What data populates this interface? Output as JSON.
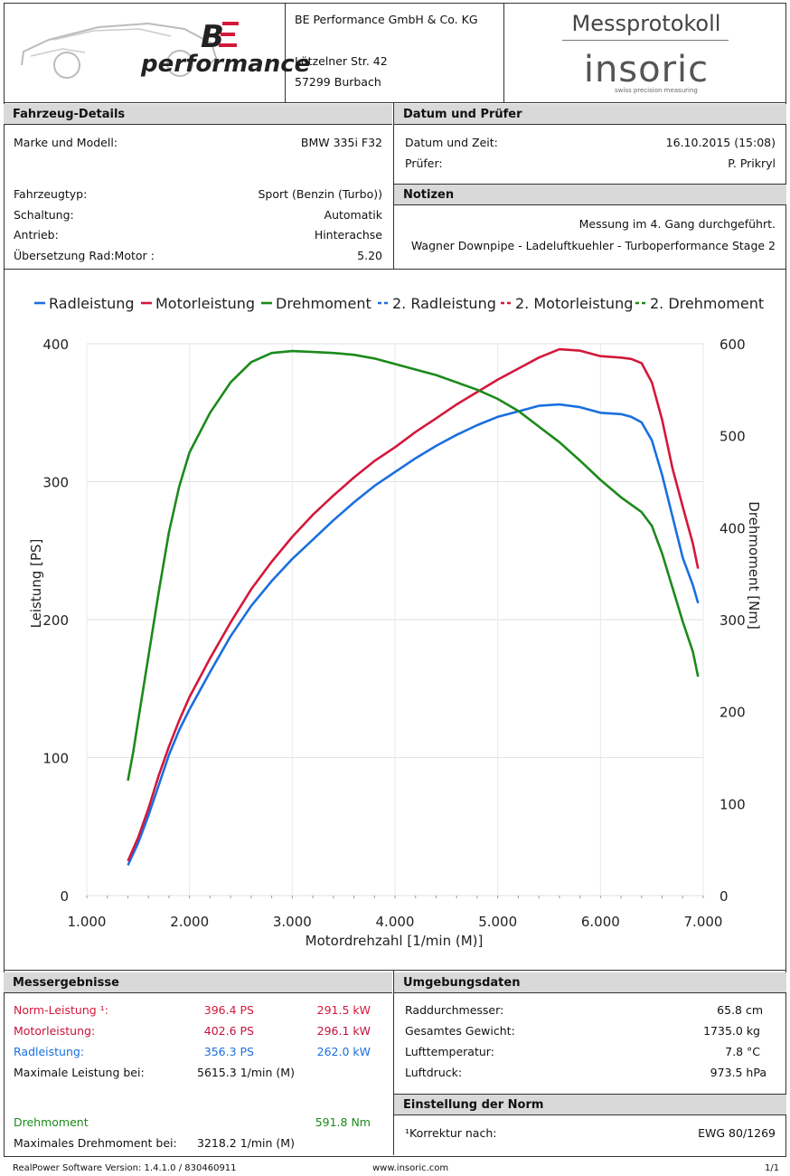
{
  "header": {
    "brand": "performance",
    "company_name": "BE Performance GmbH & Co. KG",
    "street": "Lützelner Str. 42",
    "city": "57299 Burbach",
    "protocol_title": "Messprotokoll",
    "insoric_logo": "insoric",
    "insoric_tagline": "swiss precision measuring"
  },
  "vehicle": {
    "section_title": "Fahrzeug-Details",
    "rows": [
      {
        "label": "Marke und Modell:",
        "value": "BMW 335i F32"
      },
      {
        "label": "Fahrzeugtyp:",
        "value": "Sport (Benzin (Turbo))"
      },
      {
        "label": "Schaltung:",
        "value": "Automatik"
      },
      {
        "label": "Antrieb:",
        "value": "Hinterachse"
      },
      {
        "label": "Übersetzung Rad:Motor :",
        "value": "5.20"
      }
    ]
  },
  "date_tester": {
    "section_title": "Datum und Prüfer",
    "rows": [
      {
        "label": "Datum und Zeit:",
        "value": "16.10.2015 (15:08)"
      },
      {
        "label": "Prüfer:",
        "value": "P. Prikryl"
      }
    ]
  },
  "notes": {
    "section_title": "Notizen",
    "lines": [
      "Messung im 4. Gang durchgeführt.",
      "Wagner Downpipe - Ladeluftkuehler - Turboperformance Stage 2"
    ]
  },
  "chart_data": {
    "type": "line",
    "xlabel": "Motordrehzahl [1/min (M)]",
    "ylabel": "Leistung [PS]",
    "y2label": "Drehmoment [Nm]",
    "xlim": [
      1000,
      7000
    ],
    "ylim": [
      0,
      400
    ],
    "y2lim": [
      0,
      600
    ],
    "x_ticks": [
      "1.000",
      "2.000",
      "3.000",
      "4.000",
      "5.000",
      "6.000",
      "7.000"
    ],
    "y_ticks": [
      "0",
      "100",
      "200",
      "300",
      "400"
    ],
    "y2_ticks": [
      "0",
      "100",
      "200",
      "300",
      "400",
      "500",
      "600"
    ],
    "grid": true,
    "legend_position": "top",
    "legend": [
      {
        "name": "Radleistung",
        "color": "#1a6fe0",
        "style": "solid"
      },
      {
        "name": "Motorleistung",
        "color": "#d4183a",
        "style": "solid"
      },
      {
        "name": "Drehmoment",
        "color": "#1b8a1b",
        "style": "solid"
      },
      {
        "name": "2. Radleistung",
        "color": "#1a6fe0",
        "style": "dashed"
      },
      {
        "name": "2. Motorleistung",
        "color": "#d4183a",
        "style": "dashed"
      },
      {
        "name": "2. Drehmoment",
        "color": "#1b8a1b",
        "style": "dashed"
      }
    ],
    "series": [
      {
        "name": "Radleistung",
        "axis": "left",
        "color": "#1a6fe0",
        "x": [
          1400,
          1500,
          1600,
          1700,
          1800,
          1900,
          2000,
          2200,
          2400,
          2600,
          2800,
          3000,
          3200,
          3400,
          3600,
          3800,
          4000,
          4200,
          4400,
          4600,
          4800,
          5000,
          5200,
          5400,
          5600,
          5800,
          6000,
          6200,
          6300,
          6400,
          6500,
          6600,
          6700,
          6800,
          6900,
          6950
        ],
        "y": [
          22,
          38,
          58,
          80,
          102,
          120,
          135,
          162,
          188,
          210,
          228,
          244,
          258,
          272,
          285,
          297,
          307,
          317,
          326,
          334,
          341,
          347,
          351,
          355,
          356,
          354,
          350,
          349,
          347,
          343,
          330,
          305,
          275,
          245,
          225,
          212
        ]
      },
      {
        "name": "Motorleistung",
        "axis": "left",
        "color": "#d4183a",
        "x": [
          1400,
          1500,
          1600,
          1700,
          1800,
          1900,
          2000,
          2200,
          2400,
          2600,
          2800,
          3000,
          3200,
          3400,
          3600,
          3800,
          4000,
          4200,
          4400,
          4600,
          4800,
          5000,
          5200,
          5400,
          5600,
          5800,
          6000,
          6200,
          6300,
          6400,
          6500,
          6600,
          6700,
          6800,
          6900,
          6950
        ],
        "y": [
          25,
          42,
          63,
          87,
          108,
          127,
          144,
          172,
          198,
          222,
          242,
          260,
          276,
          290,
          303,
          315,
          325,
          336,
          346,
          356,
          365,
          374,
          382,
          390,
          396,
          395,
          391,
          390,
          389,
          386,
          372,
          345,
          310,
          282,
          255,
          237
        ]
      },
      {
        "name": "Drehmoment",
        "axis": "right",
        "color": "#1b8a1b",
        "x": [
          1400,
          1450,
          1500,
          1600,
          1700,
          1800,
          1900,
          2000,
          2200,
          2400,
          2600,
          2800,
          3000,
          3200,
          3400,
          3600,
          3800,
          4000,
          4200,
          4400,
          4600,
          4800,
          5000,
          5200,
          5400,
          5600,
          5800,
          6000,
          6200,
          6400,
          6500,
          6600,
          6700,
          6800,
          6900,
          6950
        ],
        "y": [
          125,
          155,
          190,
          260,
          330,
          395,
          445,
          482,
          525,
          558,
          580,
          590,
          592,
          591,
          590,
          588,
          584,
          578,
          572,
          566,
          558,
          550,
          540,
          527,
          510,
          493,
          473,
          452,
          433,
          417,
          402,
          372,
          335,
          298,
          265,
          238
        ]
      }
    ]
  },
  "results": {
    "section_title": "Messergebnisse",
    "norm": {
      "label": "Norm-Leistung ¹:",
      "ps": "396.4 PS",
      "kw": "291.5 kW"
    },
    "motor": {
      "label": "Motorleistung:",
      "ps": "402.6 PS",
      "kw": "296.1 kW"
    },
    "rad": {
      "label": "Radleistung:",
      "ps": "356.3 PS",
      "kw": "262.0 kW"
    },
    "max_power_at": {
      "label": "Maximale Leistung bei:",
      "value": "5615.3 1/min (M)"
    },
    "torque": {
      "label": "Drehmoment",
      "value": "591.8 Nm"
    },
    "max_torque_at": {
      "label": "Maximales Drehmoment bei:",
      "value": "3218.2 1/min (M)"
    }
  },
  "environment": {
    "section_title": "Umgebungsdaten",
    "rows": [
      {
        "label": "Raddurchmesser:",
        "value": "65.8 cm"
      },
      {
        "label": "Gesamtes Gewicht:",
        "value": "1735.0 kg"
      },
      {
        "label": "Lufttemperatur:",
        "value": "7.8 °C"
      },
      {
        "label": "Luftdruck:",
        "value": "973.5 hPa"
      }
    ]
  },
  "norm_setting": {
    "section_title": "Einstellung der Norm",
    "label": "¹Korrektur nach:",
    "value": "EWG 80/1269"
  },
  "footer": {
    "software": "RealPower Software Version: 1.4.1.0 / 830460911",
    "website": "www.insoric.com",
    "page": "1/1"
  }
}
